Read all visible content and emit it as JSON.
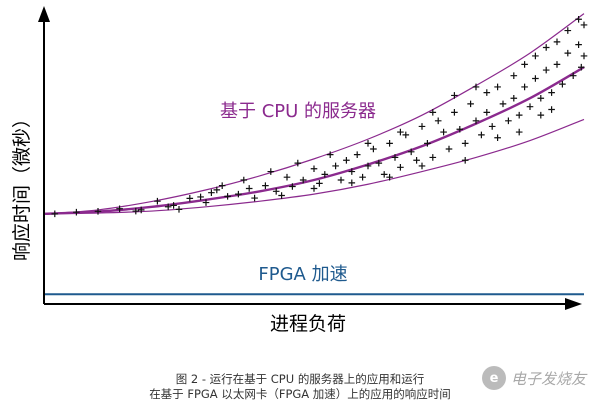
{
  "chart_data": {
    "type": "line",
    "title": "",
    "xlabel": "进程负荷",
    "ylabel": "响应时间（微秒）",
    "xlim": [
      0,
      100
    ],
    "ylim": [
      0,
      100
    ],
    "x_ticks": false,
    "y_ticks": false,
    "grid": false,
    "annotations": [
      {
        "text": "基于 CPU 的服务器",
        "color": "#8b2a8e"
      },
      {
        "text": "FPGA 加速",
        "color": "#1f5a8e"
      }
    ],
    "series": [
      {
        "role": "cpu-mean",
        "color": "#8b2a8e",
        "x": [
          0,
          10,
          20,
          30,
          40,
          50,
          60,
          70,
          80,
          90,
          100
        ],
        "y": [
          27,
          27.8,
          29.5,
          32,
          35,
          39,
          44.5,
          51,
          59,
          68,
          79
        ]
      },
      {
        "role": "cpu-upper",
        "color": "#8b2a8e",
        "x": [
          0,
          10,
          20,
          30,
          40,
          50,
          60,
          70,
          80,
          90,
          100
        ],
        "y": [
          27,
          28.4,
          31.4,
          35.5,
          40.5,
          46.5,
          53.5,
          62,
          72.5,
          84,
          98
        ]
      },
      {
        "role": "cpu-lower",
        "color": "#8b2a8e",
        "x": [
          0,
          10,
          20,
          30,
          40,
          50,
          60,
          70,
          80,
          90,
          100
        ],
        "y": [
          27,
          27.3,
          28,
          29.5,
          31.5,
          34,
          37.5,
          42,
          47,
          53,
          60.5
        ]
      },
      {
        "role": "fpga",
        "color": "#1f5a8e",
        "x": [
          0,
          100
        ],
        "y": [
          -1.5,
          -1.5
        ]
      }
    ],
    "scatter_points": [
      [
        2,
        27
      ],
      [
        6,
        27.6
      ],
      [
        10,
        27.9
      ],
      [
        14,
        28.8
      ],
      [
        18,
        28.4
      ],
      [
        21,
        31.5
      ],
      [
        24,
        30
      ],
      [
        25,
        28.6
      ],
      [
        27,
        32.5
      ],
      [
        29,
        33
      ],
      [
        30,
        31
      ],
      [
        32,
        35.5
      ],
      [
        34,
        33.2
      ],
      [
        36,
        34
      ],
      [
        38,
        36
      ],
      [
        39,
        32.6
      ],
      [
        41,
        37
      ],
      [
        43,
        35
      ],
      [
        45,
        40
      ],
      [
        46,
        36.7
      ],
      [
        48,
        39
      ],
      [
        50,
        43
      ],
      [
        51,
        37.8
      ],
      [
        52,
        41
      ],
      [
        54,
        44
      ],
      [
        55,
        39
      ],
      [
        56,
        46
      ],
      [
        57,
        42
      ],
      [
        58,
        48
      ],
      [
        59,
        40
      ],
      [
        60,
        44
      ],
      [
        61,
        50
      ],
      [
        62,
        45
      ],
      [
        63,
        41
      ],
      [
        64,
        52
      ],
      [
        65,
        47
      ],
      [
        66,
        43.5
      ],
      [
        67,
        55
      ],
      [
        68,
        49
      ],
      [
        69,
        46
      ],
      [
        70,
        58
      ],
      [
        71,
        52
      ],
      [
        72,
        47
      ],
      [
        73,
        60
      ],
      [
        74,
        56
      ],
      [
        75,
        50
      ],
      [
        76,
        63
      ],
      [
        77,
        57
      ],
      [
        78,
        52
      ],
      [
        79,
        66
      ],
      [
        80,
        60
      ],
      [
        81,
        55
      ],
      [
        82,
        70
      ],
      [
        82,
        63
      ],
      [
        83,
        58
      ],
      [
        84,
        72
      ],
      [
        85,
        66
      ],
      [
        86,
        60
      ],
      [
        87,
        76
      ],
      [
        87,
        68
      ],
      [
        88,
        62
      ],
      [
        89,
        80
      ],
      [
        89,
        72
      ],
      [
        90,
        65
      ],
      [
        91,
        83
      ],
      [
        91,
        75
      ],
      [
        92,
        68
      ],
      [
        93,
        86
      ],
      [
        93,
        78
      ],
      [
        94,
        70
      ],
      [
        95,
        88
      ],
      [
        95,
        80
      ],
      [
        96,
        73
      ],
      [
        97,
        92
      ],
      [
        97,
        84
      ],
      [
        98,
        76
      ],
      [
        99,
        96
      ],
      [
        99,
        87
      ],
      [
        99.5,
        79
      ],
      [
        100,
        94
      ],
      [
        100,
        83
      ],
      [
        76,
        69
      ],
      [
        80,
        72
      ],
      [
        72,
        63
      ],
      [
        66,
        56
      ],
      [
        60,
        52
      ],
      [
        53,
        48
      ],
      [
        47,
        45
      ],
      [
        42,
        42
      ],
      [
        37,
        39
      ],
      [
        33,
        37
      ],
      [
        88,
        56
      ],
      [
        92,
        62
      ],
      [
        84,
        54
      ],
      [
        94,
        64
      ],
      [
        70,
        44
      ],
      [
        64,
        40
      ],
      [
        57,
        38
      ],
      [
        50,
        36
      ],
      [
        44,
        33.5
      ],
      [
        31,
        34.5
      ],
      [
        23,
        29.5
      ],
      [
        17,
        28
      ],
      [
        78,
        46
      ]
    ]
  },
  "caption": {
    "line1": "图 2 - 运行在基于 CPU 的服务器上的应用和运行",
    "line2": "在基于 FPGA 以太网卡（FPGA 加速）上的应用的响应时间"
  },
  "watermark": {
    "logo_char": "e",
    "text": "电子发烧友"
  }
}
